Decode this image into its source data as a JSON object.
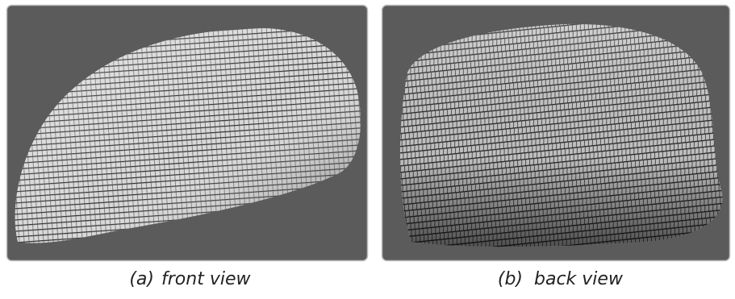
{
  "figure": {
    "panels": [
      {
        "label": "(a)",
        "caption": "front view"
      },
      {
        "label": "(b)",
        "caption": "back view"
      }
    ]
  }
}
